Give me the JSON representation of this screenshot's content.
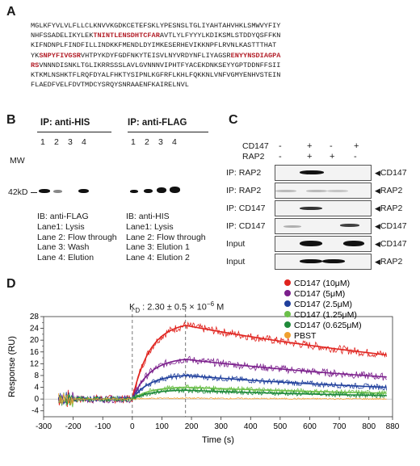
{
  "panelA": {
    "label": "A",
    "lines": [
      [
        {
          "t": "MGLKFYVLVLFLLCLKNVVKGDKCETEFSKLYPESNSLTGLIYAHTAHVHKLSMWVYFIY",
          "h": false
        }
      ],
      [
        {
          "t": "NHFSSADELIKYLEK",
          "h": false
        },
        {
          "t": "TNINTLENSDHTCFAR",
          "h": true
        },
        {
          "t": "AVTLYLFYYYLKDIKSMLSTDDYQSFFKN",
          "h": false
        }
      ],
      [
        {
          "t": "KIFNDNPLFINDFILLINDKKFMENDLDYIMKESERHEVIKKNPFLRVNLKASTTTHAT",
          "h": false
        }
      ],
      [
        {
          "t": "YK",
          "h": false
        },
        {
          "t": "SNPYFIVGSR",
          "h": true
        },
        {
          "t": "VHTPYKDYFGDFNKYTEISVLNYVRDYNFLIYAGSR",
          "h": false
        },
        {
          "t": "ENYYNSDIAGPA",
          "h": true
        }
      ],
      [
        {
          "t": "RS",
          "h": true
        },
        {
          "t": "VNNNDISNKLTGLIKRRSSSLAVLGVNNNVIPHTFYACEKDNKSEYYGPTDDNFFSII",
          "h": false
        }
      ],
      [
        {
          "t": "KTKMLNSHKTFLRQFDYALFHKTYSIPNLKGFRFLKHLFQKKNLVNFVGMYENHVSTEIN",
          "h": false
        }
      ],
      [
        {
          "t": "FLAEDFVELFDVTMDCYSRQYSNRAAENFKAIRELNVL",
          "h": false
        }
      ]
    ]
  },
  "panelB": {
    "label": "B",
    "mw_label": "MW",
    "mw_marker": "42kD",
    "left": {
      "title": "IP: anti-HIS",
      "lanes": [
        "1",
        "2",
        "3",
        "4"
      ],
      "ib": "IB: anti-FLAG",
      "legend": [
        "Lane1: Lysis",
        "Lane 2: Flow through",
        "Lane 3: Wash",
        "Lane 4: Elution"
      ]
    },
    "right": {
      "title": "IP: anti-FLAG",
      "lanes": [
        "1",
        "2",
        "3",
        "4"
      ],
      "ib": "IB: anti-HIS",
      "legend": [
        "Lane1: Lysis",
        "Lane 2: Flow through",
        "Lane 3: Elution 1",
        "Lane 4: Elution 2"
      ]
    }
  },
  "panelC": {
    "label": "C",
    "conditions": [
      {
        "name": "CD147",
        "signs": [
          "-",
          "+",
          "+",
          "-",
          "+"
        ]
      },
      {
        "name": "RAP2",
        "signs": [
          "-",
          "+",
          "",
          "+",
          "-"
        ]
      }
    ],
    "cond_rows": [
      {
        "name": "CD147",
        "signs": [
          "-",
          "+",
          "-",
          "+"
        ]
      },
      {
        "name": "RAP2",
        "signs": [
          "-",
          "+",
          "+",
          "-"
        ]
      }
    ],
    "rows": [
      {
        "left": "IP: RAP2",
        "right": "CD147"
      },
      {
        "left": "IP: RAP2",
        "right": "RAP2"
      },
      {
        "left": "IP: CD147",
        "right": "RAP2"
      },
      {
        "left": "IP: CD147",
        "right": "CD147"
      },
      {
        "left": "Input",
        "right": "CD147"
      },
      {
        "left": "Input",
        "right": "RAP2"
      }
    ]
  },
  "panelD": {
    "label": "D",
    "annotation": "K",
    "annotation_sub": "D",
    "annotation_rest": " : 2.30 ± 0.5 × 10",
    "annotation_exp": "−6",
    "annotation_unit": " M",
    "colors": {
      "red": "#e0231e",
      "purple": "#7b1f8c",
      "blue": "#1f3f9c",
      "lightgreen": "#6cc04a",
      "green": "#1f8a3a",
      "orange": "#f0a030"
    }
  },
  "chart_data": {
    "type": "line",
    "xlabel": "Time (s)",
    "ylabel": "Response (RU)",
    "xlim": [
      -300,
      880
    ],
    "ylim": [
      -6,
      28
    ],
    "xticks": [
      -300,
      -200,
      -100,
      0,
      100,
      200,
      300,
      400,
      500,
      600,
      700,
      800,
      880
    ],
    "yticks": [
      -4,
      0,
      4,
      8,
      12,
      16,
      20,
      24,
      28
    ],
    "yticks_minor": [
      -2,
      2,
      6,
      10,
      14,
      18,
      22,
      26
    ],
    "injection_start": 0,
    "injection_end": 180,
    "legend_position": "top-right",
    "series": [
      {
        "name": "CD147 (10μM)",
        "color": "#e0231e",
        "peak": 25,
        "end": 15,
        "noise": 1.4,
        "fit": true
      },
      {
        "name": "CD147 (5μM)",
        "color": "#7b1f8c",
        "peak": 13.5,
        "end": 7.5,
        "noise": 1.3,
        "fit": true
      },
      {
        "name": "CD147 (2.5μM)",
        "color": "#1f3f9c",
        "peak": 8,
        "end": 4,
        "noise": 1.0,
        "fit": true
      },
      {
        "name": "CD147 (1.25μM)",
        "color": "#6cc04a",
        "peak": 4,
        "end": 2,
        "noise": 0.9,
        "fit": true
      },
      {
        "name": "CD147 (0.625μM)",
        "color": "#1f8a3a",
        "peak": 3,
        "end": 1.2,
        "noise": 0.8,
        "fit": true
      },
      {
        "name": "PBST",
        "color": "#f0a030",
        "peak": 0.3,
        "end": 0,
        "noise": 0.25,
        "fit": false
      }
    ]
  }
}
